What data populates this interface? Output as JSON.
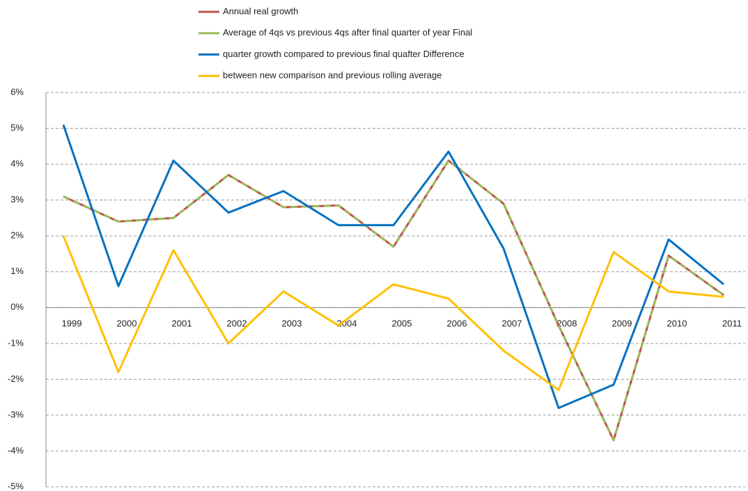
{
  "chart_data": {
    "type": "line",
    "categories": [
      "1999",
      "2000",
      "2001",
      "2002",
      "2003",
      "2004",
      "2005",
      "2006",
      "2007",
      "2008",
      "2009",
      "2010",
      "2011"
    ],
    "series": [
      {
        "name": "Annual real growth",
        "color": "#c0504d",
        "values": [
          3.1,
          2.4,
          2.5,
          3.7,
          2.8,
          2.85,
          1.7,
          4.1,
          2.9,
          -0.5,
          -3.7,
          1.45,
          0.35
        ]
      },
      {
        "name": "Average of 4qs vs previous 4qs after final quarter of year Final",
        "color": "#9bbb59",
        "dashed": true,
        "values": [
          3.1,
          2.4,
          2.5,
          3.7,
          2.8,
          2.85,
          1.7,
          4.1,
          2.9,
          -0.5,
          -3.7,
          1.45,
          0.35
        ]
      },
      {
        "name": "quarter growth compared to previous final quafter Difference",
        "color": "#0070c0",
        "values": [
          5.1,
          0.6,
          4.1,
          2.65,
          3.25,
          2.3,
          2.3,
          4.35,
          1.65,
          -2.8,
          -2.15,
          1.9,
          0.65
        ]
      },
      {
        "name": "between new comparison and previous rolling average",
        "color": "#ffc000",
        "values": [
          2.0,
          -1.8,
          1.6,
          -1.0,
          0.45,
          -0.5,
          0.65,
          0.25,
          -1.2,
          -2.3,
          1.55,
          0.45,
          0.3
        ]
      }
    ],
    "ylim": [
      -5,
      6
    ],
    "yticks": [
      {
        "value": -5,
        "label": "-5%"
      },
      {
        "value": -4,
        "label": "-4%"
      },
      {
        "value": -3,
        "label": "-3%"
      },
      {
        "value": -2,
        "label": "-2%"
      },
      {
        "value": -1,
        "label": "-1%"
      },
      {
        "value": 0,
        "label": "0%"
      },
      {
        "value": 1,
        "label": "1%"
      },
      {
        "value": 2,
        "label": "2%"
      },
      {
        "value": 3,
        "label": "3%"
      },
      {
        "value": 4,
        "label": "4%"
      },
      {
        "value": 5,
        "label": "5%"
      },
      {
        "value": 6,
        "label": "6%"
      }
    ],
    "grid": true,
    "legend": "top"
  }
}
